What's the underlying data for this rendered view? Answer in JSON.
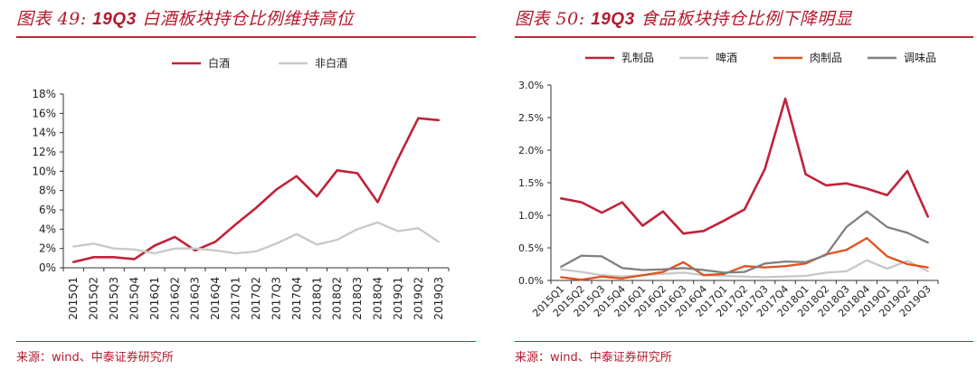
{
  "left_panel": {
    "title_prefix": "图表 49:",
    "title_bold": "19Q3",
    "title_rest": "白酒板块持仓比例维持高位",
    "source": "来源：wind、中泰证券研究所"
  },
  "right_panel": {
    "title_prefix": "图表 50:",
    "title_bold": "19Q3",
    "title_rest": "食品板块持仓比例下降明显",
    "source": "来源：wind、中泰证券研究所"
  },
  "chart_data": [
    {
      "type": "line",
      "title": "",
      "xlabel": "",
      "ylabel": "",
      "ylim": [
        0,
        18
      ],
      "y_tick_step": 2,
      "y_tick_format": "percent_int",
      "y_ticks": [
        "0%",
        "2%",
        "4%",
        "6%",
        "8%",
        "10%",
        "12%",
        "14%",
        "16%",
        "18%"
      ],
      "legend_position": "top-center",
      "grid": false,
      "x_label_style": "rotated-90",
      "categories": [
        "2015Q1",
        "2015Q2",
        "2015Q3",
        "2015Q4",
        "2016Q1",
        "2016Q2",
        "2016Q3",
        "2016Q4",
        "2017Q1",
        "2017Q2",
        "2017Q3",
        "2017Q4",
        "2018Q1",
        "2018Q2",
        "2018Q3",
        "2018Q4",
        "2019Q1",
        "2019Q2",
        "2019Q3"
      ],
      "series": [
        {
          "name": "白酒",
          "color": "#c0233a",
          "values": [
            0.6,
            1.1,
            1.1,
            0.9,
            2.3,
            3.2,
            1.8,
            2.7,
            4.5,
            6.2,
            8.1,
            9.5,
            7.4,
            10.1,
            9.8,
            6.8,
            11.3,
            15.5,
            15.3
          ]
        },
        {
          "name": "非白酒",
          "color": "#c8c8c8",
          "values": [
            2.2,
            2.5,
            2.0,
            1.9,
            1.5,
            2.0,
            2.0,
            1.8,
            1.5,
            1.7,
            2.5,
            3.5,
            2.4,
            2.9,
            4.0,
            4.7,
            3.8,
            4.1,
            2.7
          ]
        }
      ]
    },
    {
      "type": "line",
      "title": "",
      "xlabel": "",
      "ylabel": "",
      "ylim": [
        0,
        3.0
      ],
      "y_tick_step": 0.5,
      "y_tick_format": "percent_1dp",
      "y_ticks": [
        "0.0%",
        "0.5%",
        "1.0%",
        "1.5%",
        "2.0%",
        "2.5%",
        "3.0%"
      ],
      "legend_position": "top-center",
      "grid": false,
      "x_label_style": "rotated-45",
      "categories": [
        "2015Q1",
        "2015Q2",
        "2015Q3",
        "2015Q4",
        "2016Q1",
        "2016Q2",
        "2016Q3",
        "2016Q4",
        "2017Q1",
        "2017Q2",
        "2017Q3",
        "2017Q4",
        "2018Q1",
        "2018Q2",
        "2018Q3",
        "2018Q4",
        "2019Q1",
        "2019Q2",
        "2019Q3"
      ],
      "series": [
        {
          "name": "乳制品",
          "color": "#c0233a",
          "values": [
            1.26,
            1.2,
            1.04,
            1.2,
            0.84,
            1.06,
            0.72,
            0.76,
            0.92,
            1.09,
            1.71,
            2.79,
            1.63,
            1.46,
            1.49,
            1.41,
            1.31,
            1.68,
            0.98
          ]
        },
        {
          "name": "啤酒",
          "color": "#c8c8c8",
          "values": [
            0.17,
            0.13,
            0.08,
            0.06,
            0.08,
            0.1,
            0.12,
            0.08,
            0.07,
            0.06,
            0.05,
            0.06,
            0.07,
            0.12,
            0.14,
            0.31,
            0.18,
            0.3,
            0.14
          ]
        },
        {
          "name": "肉制品",
          "color": "#e2511c",
          "values": [
            0.05,
            0.01,
            0.06,
            0.03,
            0.08,
            0.13,
            0.28,
            0.08,
            0.1,
            0.22,
            0.2,
            0.22,
            0.26,
            0.4,
            0.47,
            0.65,
            0.37,
            0.25,
            0.2
          ]
        },
        {
          "name": "调味品",
          "color": "#808080",
          "values": [
            0.21,
            0.38,
            0.37,
            0.19,
            0.16,
            0.17,
            0.19,
            0.16,
            0.12,
            0.13,
            0.26,
            0.29,
            0.28,
            0.39,
            0.82,
            1.06,
            0.82,
            0.73,
            0.58
          ]
        }
      ]
    }
  ]
}
